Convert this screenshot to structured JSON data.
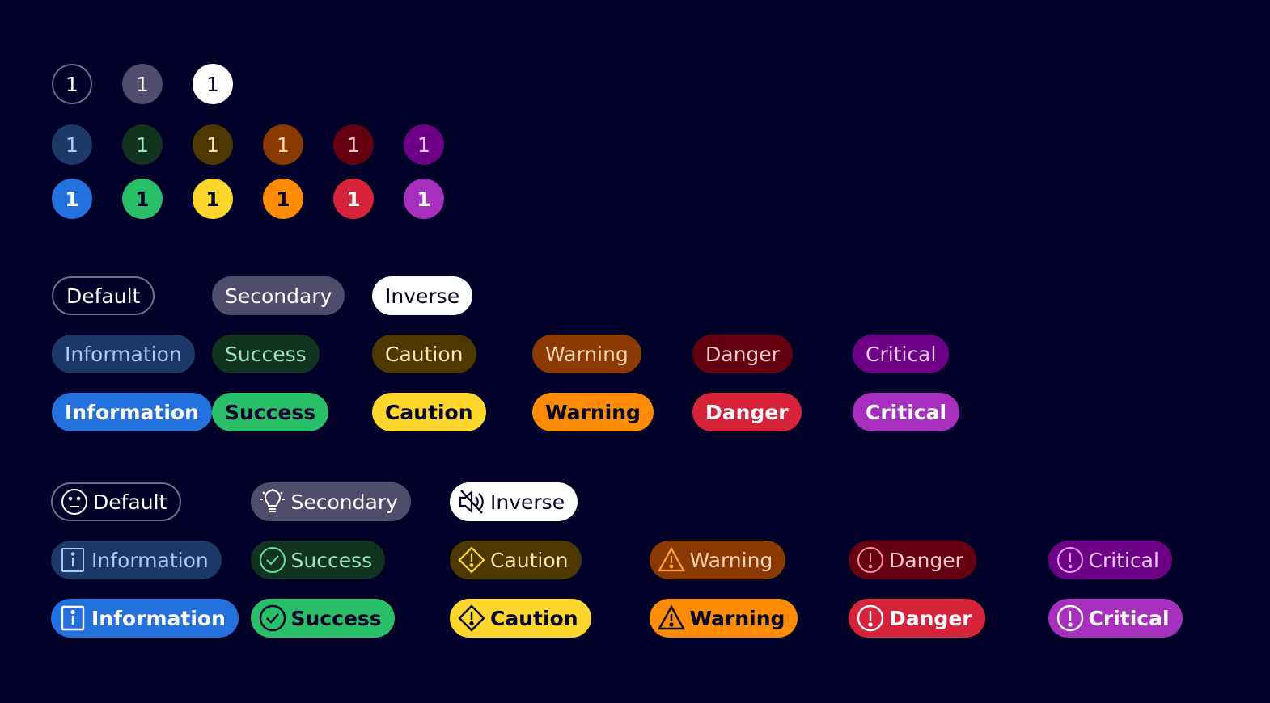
{
  "background": "#000028",
  "counters": {
    "row1": [
      {
        "value": "1",
        "variant": "default"
      },
      {
        "value": "1",
        "variant": "secondary"
      },
      {
        "value": "1",
        "variant": "inverse"
      }
    ],
    "row2": [
      {
        "value": "1",
        "variant": "information-subtle"
      },
      {
        "value": "1",
        "variant": "success-subtle"
      },
      {
        "value": "1",
        "variant": "caution-subtle"
      },
      {
        "value": "1",
        "variant": "warning-subtle"
      },
      {
        "value": "1",
        "variant": "danger-subtle"
      },
      {
        "value": "1",
        "variant": "critical-subtle"
      }
    ],
    "row3": [
      {
        "value": "1",
        "variant": "information"
      },
      {
        "value": "1",
        "variant": "success"
      },
      {
        "value": "1",
        "variant": "caution"
      },
      {
        "value": "1",
        "variant": "warning"
      },
      {
        "value": "1",
        "variant": "danger"
      },
      {
        "value": "1",
        "variant": "critical"
      }
    ]
  },
  "pills": {
    "row1": [
      "Default",
      "Secondary",
      "Inverse"
    ],
    "row2": [
      "Information",
      "Success",
      "Caution",
      "Warning",
      "Danger",
      "Critical"
    ],
    "row3": [
      "Information",
      "Success",
      "Caution",
      "Warning",
      "Danger",
      "Critical"
    ]
  },
  "icon_pills": {
    "row1": [
      {
        "label": "Default",
        "icon": "face-neutral-icon"
      },
      {
        "label": "Secondary",
        "icon": "lightbulb-icon"
      },
      {
        "label": "Inverse",
        "icon": "sound-mute-icon"
      }
    ],
    "row2": [
      {
        "label": "Information",
        "icon": "info-icon"
      },
      {
        "label": "Success",
        "icon": "check-circle-icon"
      },
      {
        "label": "Caution",
        "icon": "caution-diamond-icon"
      },
      {
        "label": "Warning",
        "icon": "warning-triangle-icon"
      },
      {
        "label": "Danger",
        "icon": "alert-circle-icon"
      },
      {
        "label": "Critical",
        "icon": "alert-circle-icon"
      }
    ],
    "row3": [
      {
        "label": "Information",
        "icon": "info-icon"
      },
      {
        "label": "Success",
        "icon": "check-circle-icon"
      },
      {
        "label": "Caution",
        "icon": "caution-diamond-icon"
      },
      {
        "label": "Warning",
        "icon": "warning-triangle-icon"
      },
      {
        "label": "Danger",
        "icon": "alert-circle-icon"
      },
      {
        "label": "Critical",
        "icon": "alert-circle-icon"
      }
    ]
  },
  "colors": {
    "information": "#2271dd",
    "success": "#29bf68",
    "caution": "#ffd62c",
    "warning": "#ff8c00",
    "danger": "#d72339",
    "critical": "#a72fbd",
    "information_subtle": "#1b3867",
    "success_subtle": "#12331f",
    "caution_subtle": "#4d3800",
    "warning_subtle": "#8a3a00",
    "danger_subtle": "#640010",
    "critical_subtle": "#6e0087",
    "secondary": "#4f4d6b",
    "inverse": "#ffffff"
  }
}
